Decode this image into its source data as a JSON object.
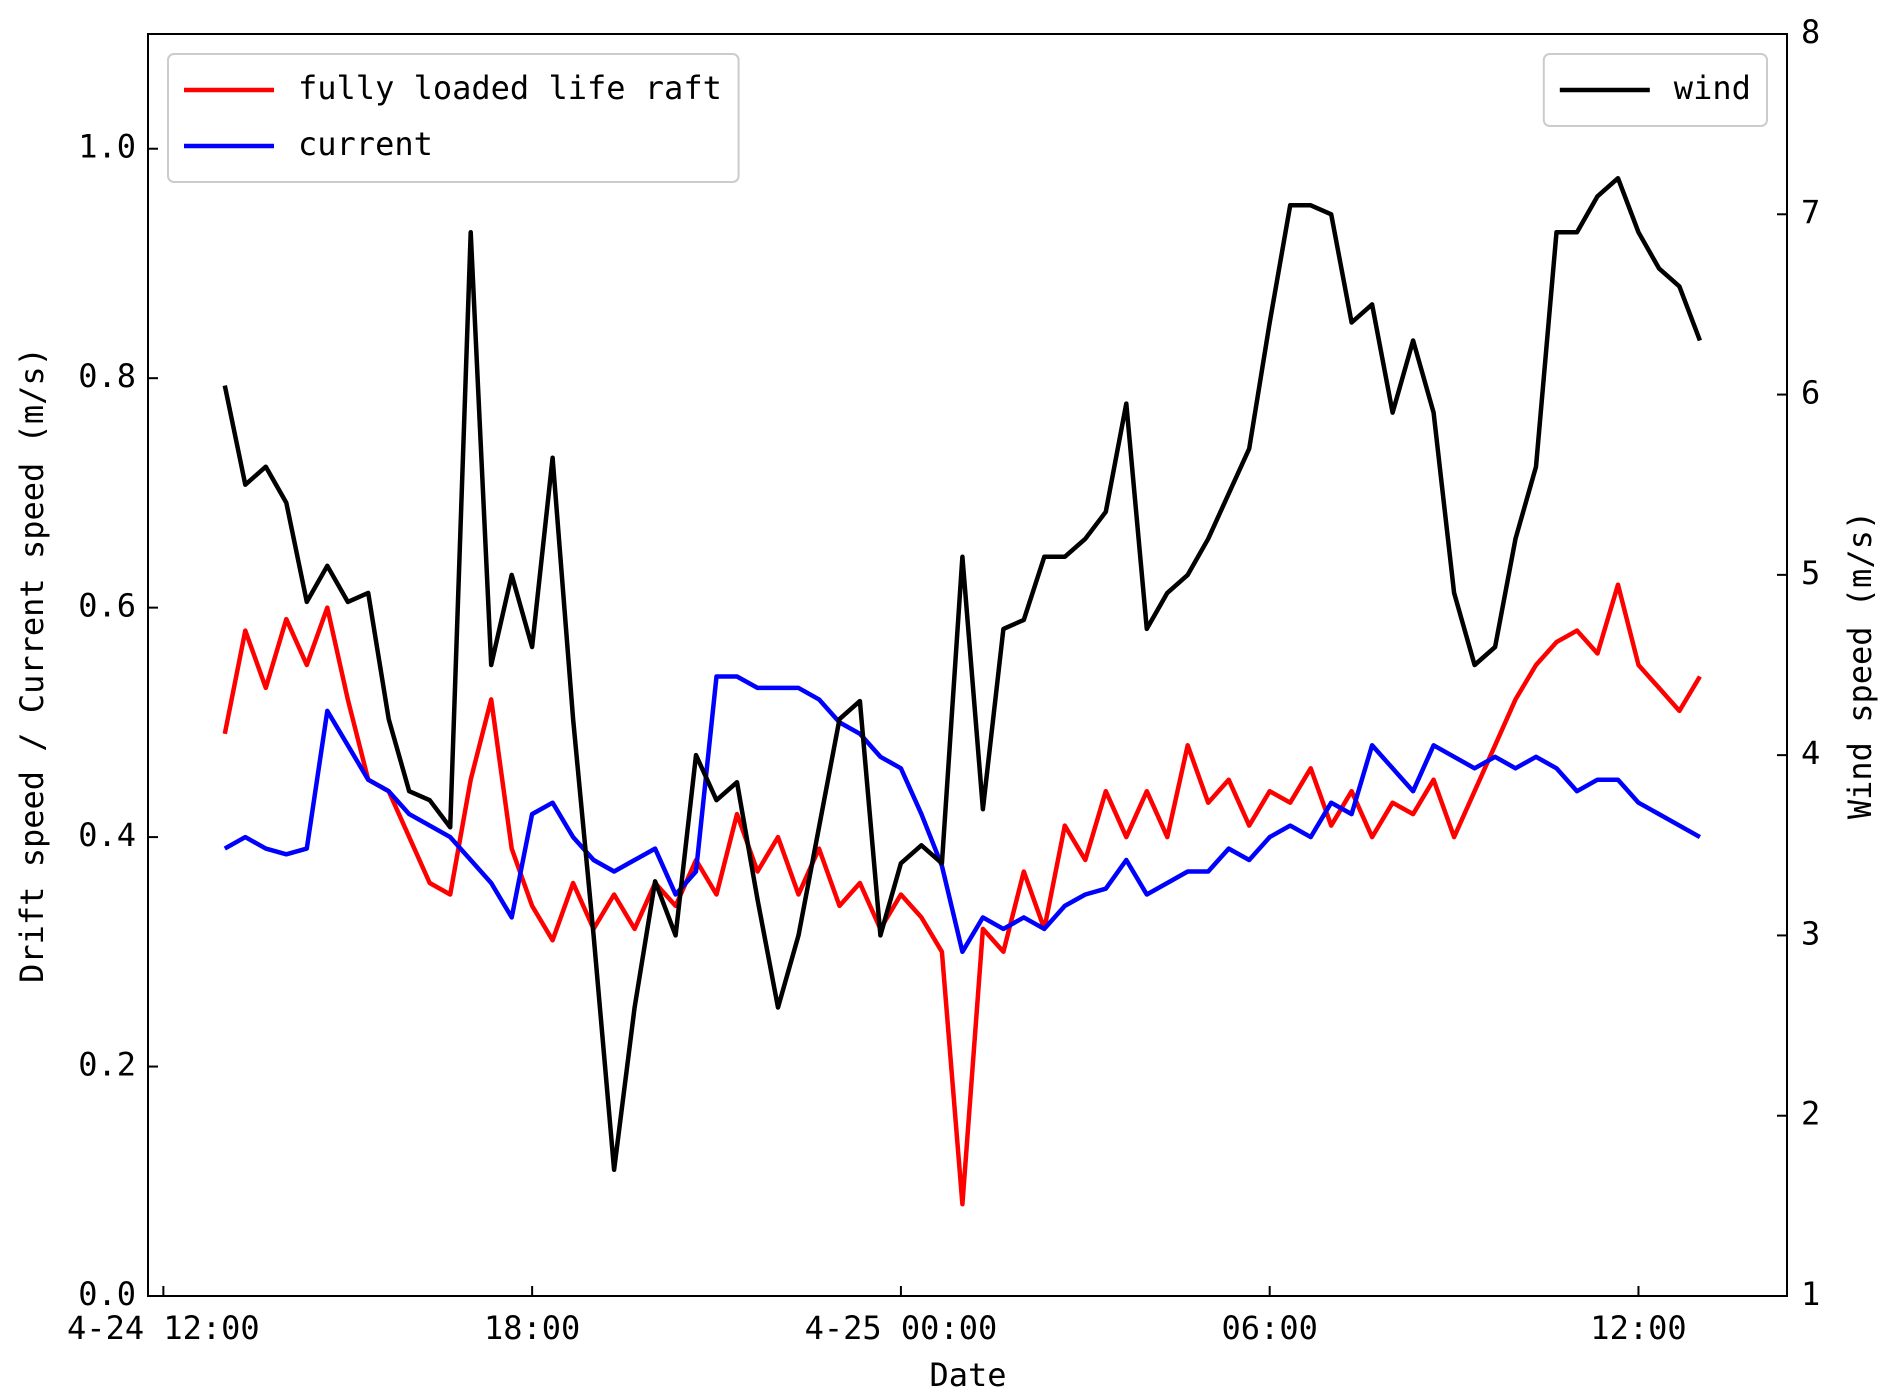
{
  "chart_data": {
    "type": "line",
    "x_label": "Date",
    "y_label": "Drift speed / Current speed (m/s)",
    "y2_label": "Wind speed (m/s)",
    "x": [
      "4-24 13:00",
      "4-24 13:20",
      "4-24 13:40",
      "4-24 14:00",
      "4-24 14:20",
      "4-24 14:40",
      "4-24 15:00",
      "4-24 15:20",
      "4-24 15:40",
      "4-24 16:00",
      "4-24 16:20",
      "4-24 16:40",
      "4-24 17:00",
      "4-24 17:20",
      "4-24 17:40",
      "4-24 18:00",
      "4-24 18:20",
      "4-24 18:40",
      "4-24 19:00",
      "4-24 19:20",
      "4-24 19:40",
      "4-24 20:00",
      "4-24 20:20",
      "4-24 20:40",
      "4-24 21:00",
      "4-24 21:20",
      "4-24 21:40",
      "4-24 22:00",
      "4-24 22:20",
      "4-24 22:40",
      "4-24 23:00",
      "4-24 23:20",
      "4-24 23:40",
      "4-25 00:00",
      "4-25 00:20",
      "4-25 00:40",
      "4-25 01:00",
      "4-25 01:20",
      "4-25 01:40",
      "4-25 02:00",
      "4-25 02:20",
      "4-25 02:40",
      "4-25 03:00",
      "4-25 03:20",
      "4-25 03:40",
      "4-25 04:00",
      "4-25 04:20",
      "4-25 04:40",
      "4-25 05:00",
      "4-25 05:20",
      "4-25 05:40",
      "4-25 06:00",
      "4-25 06:20",
      "4-25 06:40",
      "4-25 07:00",
      "4-25 07:20",
      "4-25 07:40",
      "4-25 08:00",
      "4-25 08:20",
      "4-25 08:40",
      "4-25 09:00",
      "4-25 09:20",
      "4-25 09:40",
      "4-25 10:00",
      "4-25 10:20",
      "4-25 10:40",
      "4-25 11:00",
      "4-25 11:20",
      "4-25 11:40",
      "4-25 12:00",
      "4-25 12:20",
      "4-25 12:40",
      "4-25 13:00"
    ],
    "series": [
      {
        "name": "fully loaded life raft",
        "color": "#ff0000",
        "axis": "y",
        "values": [
          0.49,
          0.58,
          0.53,
          0.59,
          0.55,
          0.6,
          0.52,
          0.45,
          0.44,
          0.4,
          0.36,
          0.35,
          0.45,
          0.52,
          0.39,
          0.34,
          0.31,
          0.36,
          0.32,
          0.35,
          0.32,
          0.36,
          0.34,
          0.38,
          0.35,
          0.42,
          0.37,
          0.4,
          0.35,
          0.39,
          0.34,
          0.36,
          0.32,
          0.35,
          0.33,
          0.3,
          0.08,
          0.32,
          0.3,
          0.37,
          0.32,
          0.41,
          0.38,
          0.44,
          0.4,
          0.44,
          0.4,
          0.48,
          0.43,
          0.45,
          0.41,
          0.44,
          0.43,
          0.46,
          0.41,
          0.44,
          0.4,
          0.43,
          0.42,
          0.45,
          0.4,
          0.44,
          0.48,
          0.52,
          0.55,
          0.57,
          0.58,
          0.56,
          0.62,
          0.55,
          0.53,
          0.51,
          0.54
        ]
      },
      {
        "name": "current",
        "color": "#0000ff",
        "axis": "y",
        "values": [
          0.39,
          0.4,
          0.39,
          0.385,
          0.39,
          0.51,
          0.48,
          0.45,
          0.44,
          0.42,
          0.41,
          0.4,
          0.38,
          0.36,
          0.33,
          0.42,
          0.43,
          0.4,
          0.38,
          0.37,
          0.38,
          0.39,
          0.35,
          0.37,
          0.54,
          0.54,
          0.53,
          0.53,
          0.53,
          0.52,
          0.5,
          0.49,
          0.47,
          0.46,
          0.42,
          0.375,
          0.3,
          0.33,
          0.32,
          0.33,
          0.32,
          0.34,
          0.35,
          0.355,
          0.38,
          0.35,
          0.36,
          0.37,
          0.37,
          0.39,
          0.38,
          0.4,
          0.41,
          0.4,
          0.43,
          0.42,
          0.48,
          0.46,
          0.44,
          0.48,
          0.47,
          0.46,
          0.47,
          0.46,
          0.47,
          0.46,
          0.44,
          0.45,
          0.45,
          0.43,
          0.42,
          0.41,
          0.4
        ]
      },
      {
        "name": "wind",
        "color": "#000000",
        "axis": "y2",
        "values": [
          6.05,
          5.5,
          5.6,
          5.4,
          4.85,
          5.05,
          4.85,
          4.9,
          4.2,
          3.8,
          3.75,
          3.6,
          6.9,
          4.5,
          5.0,
          4.6,
          5.65,
          4.2,
          3.0,
          1.7,
          2.6,
          3.3,
          3.0,
          4.0,
          3.75,
          3.85,
          3.2,
          2.6,
          3.0,
          3.6,
          4.2,
          4.3,
          3.0,
          3.4,
          3.5,
          3.4,
          5.1,
          3.7,
          4.7,
          4.75,
          5.1,
          5.1,
          5.2,
          5.35,
          5.95,
          4.7,
          4.9,
          5.0,
          5.2,
          5.45,
          5.7,
          6.4,
          7.05,
          7.05,
          7.0,
          6.4,
          6.5,
          5.9,
          6.3,
          5.9,
          4.9,
          4.5,
          4.6,
          5.2,
          5.6,
          6.9,
          6.9,
          7.1,
          7.2,
          6.9,
          6.7,
          6.6,
          6.3
        ]
      }
    ],
    "xlim": [
      "4-24 11:45",
      "4-25 14:25"
    ],
    "xticks": [
      {
        "value": "4-24 12:00",
        "label": "4-24 12:00"
      },
      {
        "value": "4-24 18:00",
        "label": "18:00"
      },
      {
        "value": "4-25 00:00",
        "label": "4-25 00:00"
      },
      {
        "value": "4-25 06:00",
        "label": "06:00"
      },
      {
        "value": "4-25 12:00",
        "label": "12:00"
      }
    ],
    "ylim": [
      0,
      1.1
    ],
    "yticks": [
      {
        "value": 0,
        "label": "0.0"
      },
      0.2,
      0.4,
      0.6,
      0.8,
      {
        "value": 1,
        "label": "1.0"
      }
    ],
    "y2lim": [
      1,
      8
    ],
    "y2ticks": [
      1,
      2,
      3,
      4,
      5,
      6,
      7,
      8
    ],
    "legend_loc": "upper left",
    "y2_legend_loc": "upper right"
  }
}
